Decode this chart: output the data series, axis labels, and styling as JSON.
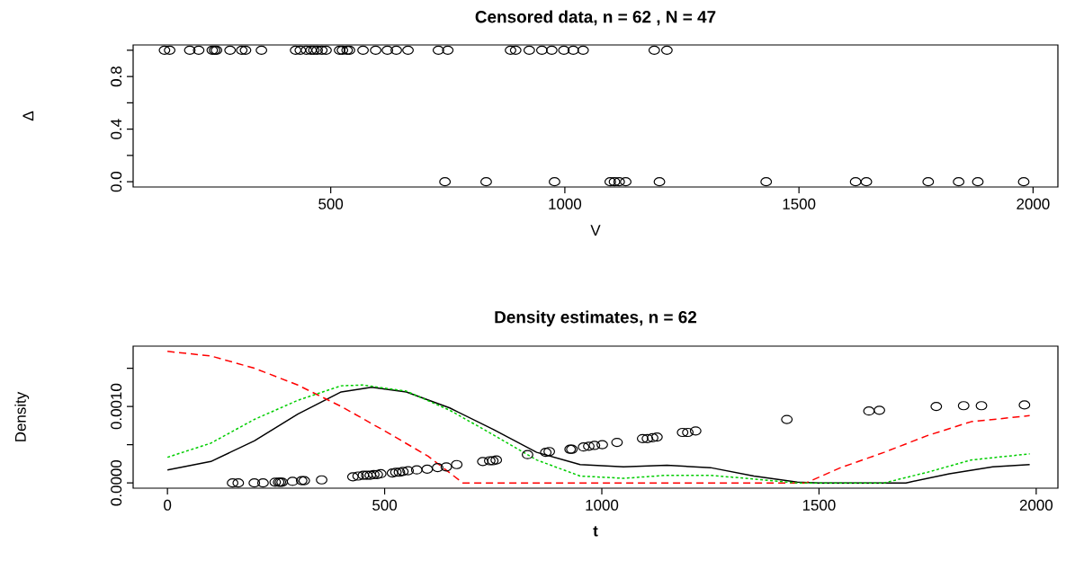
{
  "chart_data": [
    {
      "type": "scatter",
      "title": "Censored data,  n =  62 , N = 47",
      "xlabel": "V",
      "ylabel": "Δ",
      "marker": "circle",
      "xlim": [
        78,
        2053
      ],
      "ylim": [
        -0.04,
        1.04
      ],
      "xticks": [
        500,
        1000,
        1500,
        2000
      ],
      "yticks": [
        {
          "value": 0,
          "label": "0.0"
        },
        {
          "value": 0.2,
          "label": null
        },
        {
          "value": 0.4,
          "label": "0.4"
        },
        {
          "value": 0.6,
          "label": null
        },
        {
          "value": 0.8,
          "label": "0.8"
        },
        {
          "value": 1.0,
          "label": null
        }
      ],
      "series": [
        {
          "color": "#000000",
          "x": [
            145,
            156,
            199,
            218,
            247,
            252,
            256,
            285,
            310,
            318,
            352,
            425,
            435,
            448,
            458,
            464,
            471,
            481,
            490,
            519,
            525,
            535,
            540,
            569,
            596,
            621,
            640,
            665,
            730,
            750,
            884,
            895,
            924,
            951,
            972,
            998,
            1018,
            1039,
            1191,
            1218
          ],
          "values": [
            1,
            1,
            1,
            1,
            1,
            1,
            1,
            1,
            1,
            1,
            1,
            1,
            1,
            1,
            1,
            1,
            1,
            1,
            1,
            1,
            1,
            1,
            1,
            1,
            1,
            1,
            1,
            1,
            1,
            1,
            1,
            1,
            1,
            1,
            1,
            1,
            1,
            1,
            1,
            1
          ]
        },
        {
          "color": "#000000",
          "x": [
            744,
            832,
            978,
            1097,
            1106,
            1116,
            1130,
            1202,
            1430,
            1621,
            1644,
            1776,
            1841,
            1882,
            1980
          ],
          "values": [
            0,
            0,
            0,
            0,
            0,
            0,
            0,
            0,
            0,
            0,
            0,
            0,
            0,
            0,
            0
          ]
        }
      ]
    },
    {
      "type": "line",
      "title": "Density estimates, n = 62",
      "xlabel": "t",
      "ylabel": "Density",
      "xlim": [
        -79,
        2050
      ],
      "ylim": [
        -6.88e-05,
        0.0017888
      ],
      "xticks": [
        0,
        500,
        1000,
        1500,
        2000
      ],
      "yticks": [
        {
          "value": 0,
          "label": "0.0000"
        },
        {
          "value": 0.0005,
          "label": null
        },
        {
          "value": 0.001,
          "label": "0.0010"
        },
        {
          "value": 0.0015,
          "label": null
        }
      ],
      "series": [
        {
          "color": "#000000",
          "line_style": "solid",
          "x": [
            0,
            100,
            200,
            300,
            400,
            470,
            550,
            650,
            750,
            850,
            950,
            1050,
            1150,
            1250,
            1350,
            1450,
            1500,
            1700,
            1800,
            1900,
            1985
          ],
          "values": [
            0.00017,
            0.00028,
            0.00055,
            0.0009,
            0.00119,
            0.00125,
            0.00119,
            0.00098,
            0.0007,
            0.0004,
            0.00024,
            0.00021,
            0.00023,
            0.0002,
            9e-05,
            1e-05,
            0,
            0,
            0.00012,
            0.00021,
            0.00024
          ]
        },
        {
          "color": "#ff0000",
          "line_style": "dashed",
          "x": [
            0,
            100,
            200,
            300,
            400,
            500,
            600,
            680,
            1470,
            1550,
            1650,
            1750,
            1850,
            1985
          ],
          "values": [
            0.00172,
            0.00166,
            0.0015,
            0.00128,
            0.001,
            0.00068,
            0.00035,
            0,
            0,
            0.0002,
            0.0004,
            0.00062,
            0.0008,
            0.00088
          ]
        },
        {
          "color": "#00cd00",
          "line_style": "dotted",
          "x": [
            0,
            100,
            200,
            300,
            400,
            450,
            550,
            650,
            750,
            850,
            950,
            1050,
            1150,
            1250,
            1350,
            1450,
            1650,
            1750,
            1850,
            1985
          ],
          "values": [
            0.000335,
            0.00052,
            0.00083,
            0.00108,
            0.00127,
            0.00128,
            0.0012,
            0.00095,
            0.00063,
            0.0003,
            9e-05,
            6e-05,
            0.0001,
            0.0001,
            5e-05,
            0,
            0,
            0.00014,
            0.0003,
            0.00038
          ]
        },
        {
          "type": "scatter",
          "marker": "circle",
          "color": "#000000",
          "x": [
            150,
            163,
            200,
            220,
            248,
            256,
            260,
            264,
            288,
            309,
            315,
            355,
            427,
            439,
            451,
            459,
            467,
            475,
            483,
            491,
            518,
            526,
            534,
            542,
            554,
            574,
            598,
            622,
            642,
            666,
            726,
            742,
            749,
            757,
            829,
            871,
            879,
            927,
            931,
            958,
            970,
            983,
            1001,
            1035,
            1094,
            1105,
            1117,
            1127,
            1186,
            1198,
            1216,
            1426,
            1615,
            1639,
            1770,
            1833,
            1874,
            1973
          ],
          "values": [
            0,
            0,
            0,
            0,
            1e-05,
            1e-05,
            1e-05,
            1e-05,
            2e-05,
            3e-05,
            3e-05,
            4e-05,
            8e-05,
            9e-05,
            0.0001,
            0.0001,
            0.0001,
            0.00011,
            0.00011,
            0.00012,
            0.00013,
            0.00014,
            0.00014,
            0.00015,
            0.00016,
            0.00017,
            0.00018,
            0.0002,
            0.00021,
            0.00024,
            0.00028,
            0.00029,
            0.00029,
            0.0003,
            0.00037,
            0.0004,
            0.00041,
            0.00044,
            0.00044,
            0.00047,
            0.00048,
            0.00049,
            0.0005,
            0.00053,
            0.00058,
            0.00058,
            0.00059,
            0.0006,
            0.00066,
            0.00066,
            0.00068,
            0.00083,
            0.00094,
            0.00095,
            0.001,
            0.00101,
            0.00101,
            0.00102
          ]
        }
      ]
    }
  ]
}
